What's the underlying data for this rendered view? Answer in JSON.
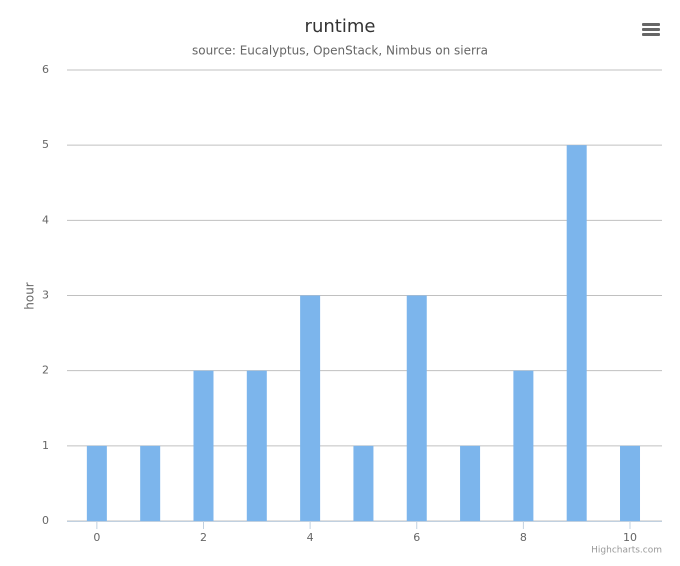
{
  "chart_data": {
    "type": "bar",
    "title": "runtime",
    "subtitle": "source: Eucalyptus, OpenStack, Nimbus on sierra",
    "y_label": "hour",
    "credits": "Highcharts.com",
    "x": [
      0,
      1,
      2,
      3,
      4,
      5,
      6,
      7,
      8,
      9,
      10
    ],
    "values": [
      1,
      1,
      2,
      2,
      3,
      1,
      3,
      1,
      2,
      5,
      1
    ],
    "color": "#7cb5ec",
    "xlim": [
      -0.56,
      10.6
    ],
    "xticks": [
      0,
      2,
      4,
      6,
      8,
      10
    ],
    "ylim": [
      0,
      6
    ],
    "yticks": [
      0,
      1,
      2,
      3,
      4,
      5,
      6
    ],
    "grid": true
  }
}
